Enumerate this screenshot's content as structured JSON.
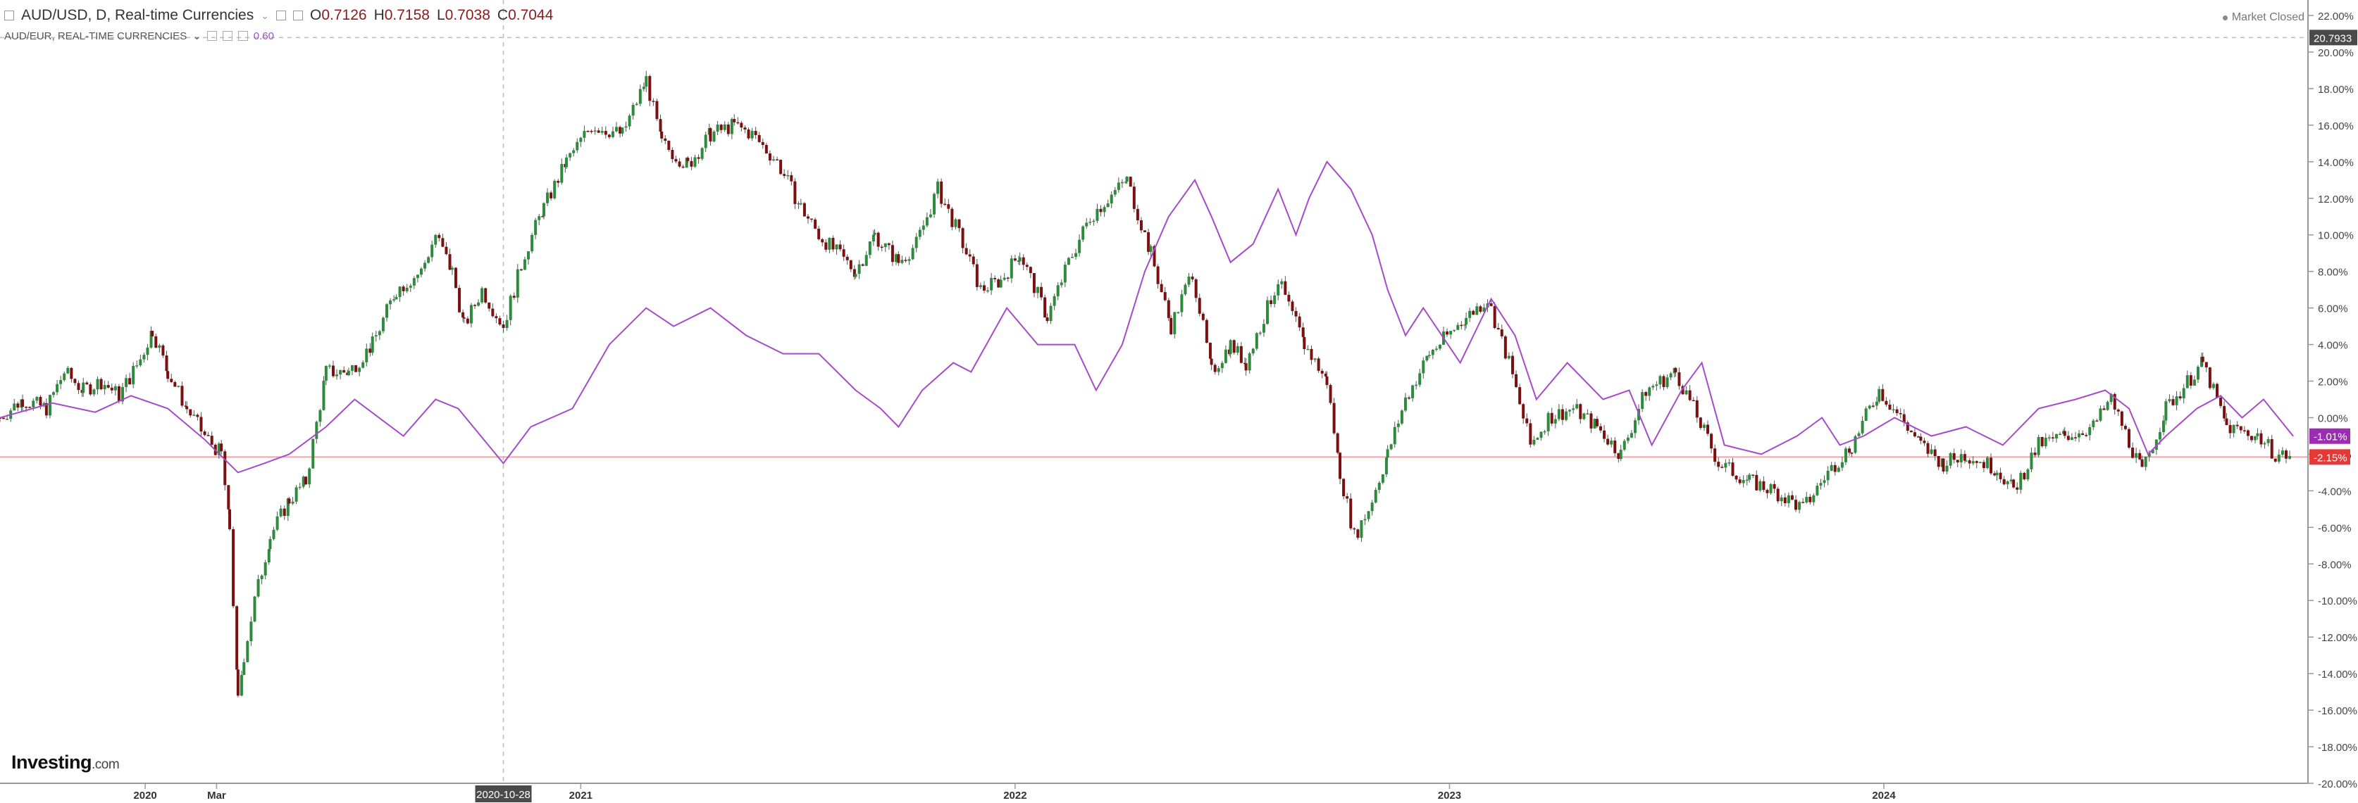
{
  "header": {
    "symbol_line": "AUD/USD, D, Real-time Currencies",
    "open_label": "O",
    "open": "0.7126",
    "high_label": "H",
    "high": "0.7158",
    "low_label": "L",
    "low": "0.7038",
    "close_label": "C",
    "close": "0.7044",
    "overlay_line": "AUD/EUR, REAL-TIME CURRENCIES",
    "overlay_value": "0.60"
  },
  "status": {
    "market": "Market Closed"
  },
  "branding": {
    "logo": "Investing",
    "logo_suffix": ".com"
  },
  "crosshair": {
    "date_label": "2020-10-28"
  },
  "chart_data": {
    "type": "line",
    "y_unit": "%",
    "y_range": [
      -20,
      22
    ],
    "y_ticks": [
      "22.00%",
      "20.00%",
      "18.00%",
      "16.00%",
      "14.00%",
      "12.00%",
      "10.00%",
      "8.00%",
      "6.00%",
      "4.00%",
      "2.00%",
      "0.00%",
      "-2.00%",
      "-4.00%",
      "-6.00%",
      "-8.00%",
      "-10.00%",
      "-12.00%",
      "-14.00%",
      "-16.00%",
      "-18.00%",
      "-20.00%"
    ],
    "x_ticks": [
      {
        "label": "2020",
        "date": "2020-01-01"
      },
      {
        "label": "Mar",
        "date": "2020-03-01"
      },
      {
        "label": "2021",
        "date": "2021-01-01"
      },
      {
        "label": "2022",
        "date": "2022-01-01"
      },
      {
        "label": "2023",
        "date": "2023-01-01"
      },
      {
        "label": "2024",
        "date": "2024-01-01"
      }
    ],
    "x_range": [
      "2019-09-01",
      "2024-12-20"
    ],
    "grid": false,
    "series": [
      {
        "name": "AUD/USD",
        "style": "candlestick",
        "up_color": "#2e8b3d",
        "down_color": "#7a1010",
        "points": [
          [
            "2019-09-01",
            0.0
          ],
          [
            "2019-09-20",
            1.0
          ],
          [
            "2019-10-10",
            0.5
          ],
          [
            "2019-10-25",
            2.5
          ],
          [
            "2019-11-10",
            1.5
          ],
          [
            "2019-11-25",
            2.0
          ],
          [
            "2019-12-10",
            1.2
          ],
          [
            "2019-12-28",
            3.2
          ],
          [
            "2020-01-07",
            4.8
          ],
          [
            "2020-01-20",
            2.5
          ],
          [
            "2020-02-05",
            0.5
          ],
          [
            "2020-02-20",
            -1.0
          ],
          [
            "2020-03-05",
            -2.0
          ],
          [
            "2020-03-12",
            -6.0
          ],
          [
            "2020-03-19",
            -15.5
          ],
          [
            "2020-03-24",
            -13.0
          ],
          [
            "2020-04-02",
            -10.0
          ],
          [
            "2020-04-15",
            -6.5
          ],
          [
            "2020-05-01",
            -4.5
          ],
          [
            "2020-05-15",
            -3.5
          ],
          [
            "2020-06-01",
            2.5
          ],
          [
            "2020-06-20",
            2.5
          ],
          [
            "2020-07-10",
            4.0
          ],
          [
            "2020-07-30",
            7.0
          ],
          [
            "2020-08-20",
            8.0
          ],
          [
            "2020-09-01",
            10.0
          ],
          [
            "2020-09-15",
            8.0
          ],
          [
            "2020-09-25",
            5.0
          ],
          [
            "2020-10-10",
            7.0
          ],
          [
            "2020-10-28",
            5.0
          ],
          [
            "2020-11-15",
            9.0
          ],
          [
            "2020-12-01",
            11.5
          ],
          [
            "2020-12-20",
            14.0
          ],
          [
            "2021-01-10",
            16.0
          ],
          [
            "2021-02-05",
            15.5
          ],
          [
            "2021-02-25",
            18.5
          ],
          [
            "2021-03-10",
            15.0
          ],
          [
            "2021-04-01",
            13.8
          ],
          [
            "2021-04-20",
            15.5
          ],
          [
            "2021-05-10",
            16.0
          ],
          [
            "2021-05-25",
            15.5
          ],
          [
            "2021-06-15",
            14.0
          ],
          [
            "2021-07-05",
            11.5
          ],
          [
            "2021-07-20",
            10.0
          ],
          [
            "2021-08-20",
            8.0
          ],
          [
            "2021-09-05",
            10.0
          ],
          [
            "2021-09-25",
            8.5
          ],
          [
            "2021-10-10",
            9.5
          ],
          [
            "2021-10-28",
            12.5
          ],
          [
            "2021-11-15",
            10.0
          ],
          [
            "2021-12-03",
            7.0
          ],
          [
            "2021-12-20",
            7.5
          ],
          [
            "2022-01-05",
            9.0
          ],
          [
            "2022-01-28",
            5.5
          ],
          [
            "2022-02-15",
            8.5
          ],
          [
            "2022-03-05",
            11.0
          ],
          [
            "2022-03-20",
            12.0
          ],
          [
            "2022-04-05",
            13.0
          ],
          [
            "2022-04-25",
            9.0
          ],
          [
            "2022-05-12",
            5.0
          ],
          [
            "2022-05-30",
            8.0
          ],
          [
            "2022-06-15",
            2.5
          ],
          [
            "2022-07-01",
            4.0
          ],
          [
            "2022-07-14",
            3.0
          ],
          [
            "2022-08-10",
            7.5
          ],
          [
            "2022-09-01",
            4.0
          ],
          [
            "2022-09-20",
            2.0
          ],
          [
            "2022-10-01",
            -3.0
          ],
          [
            "2022-10-13",
            -6.5
          ],
          [
            "2022-10-25",
            -5.0
          ],
          [
            "2022-11-10",
            -2.0
          ],
          [
            "2022-11-25",
            1.0
          ],
          [
            "2022-12-15",
            3.5
          ],
          [
            "2023-01-15",
            5.5
          ],
          [
            "2023-02-02",
            6.5
          ],
          [
            "2023-02-20",
            3.0
          ],
          [
            "2023-03-10",
            -1.5
          ],
          [
            "2023-03-25",
            0.0
          ],
          [
            "2023-04-15",
            0.5
          ],
          [
            "2023-05-05",
            -0.5
          ],
          [
            "2023-05-25",
            -2.0
          ],
          [
            "2023-06-15",
            1.5
          ],
          [
            "2023-07-10",
            2.5
          ],
          [
            "2023-07-25",
            0.5
          ],
          [
            "2023-08-15",
            -2.5
          ],
          [
            "2023-09-10",
            -3.5
          ],
          [
            "2023-10-01",
            -4.0
          ],
          [
            "2023-10-25",
            -5.0
          ],
          [
            "2023-11-15",
            -3.0
          ],
          [
            "2023-12-05",
            -1.5
          ],
          [
            "2023-12-28",
            1.5
          ],
          [
            "2024-01-15",
            0.0
          ],
          [
            "2024-02-01",
            -1.5
          ],
          [
            "2024-02-20",
            -2.5
          ],
          [
            "2024-03-10",
            -2.0
          ],
          [
            "2024-04-05",
            -2.8
          ],
          [
            "2024-04-19",
            -4.0
          ],
          [
            "2024-05-10",
            -1.5
          ],
          [
            "2024-06-01",
            -1.0
          ],
          [
            "2024-06-25",
            -0.5
          ],
          [
            "2024-07-10",
            1.0
          ],
          [
            "2024-08-05",
            -3.0
          ],
          [
            "2024-08-25",
            0.5
          ],
          [
            "2024-09-25",
            3.0
          ],
          [
            "2024-10-15",
            -0.5
          ],
          [
            "2024-11-10",
            -1.0
          ],
          [
            "2024-11-25",
            -2.0
          ],
          [
            "2024-12-10",
            -2.15
          ]
        ]
      },
      {
        "name": "AUD/EUR",
        "style": "line",
        "color": "#a64ac9",
        "points": [
          [
            "2019-09-01",
            0.0
          ],
          [
            "2019-10-15",
            0.8
          ],
          [
            "2019-11-20",
            0.3
          ],
          [
            "2019-12-20",
            1.2
          ],
          [
            "2020-01-20",
            0.5
          ],
          [
            "2020-02-20",
            -1.2
          ],
          [
            "2020-03-19",
            -3.0
          ],
          [
            "2020-04-10",
            -2.5
          ],
          [
            "2020-05-01",
            -2.0
          ],
          [
            "2020-06-01",
            -0.5
          ],
          [
            "2020-06-25",
            1.0
          ],
          [
            "2020-08-05",
            -1.0
          ],
          [
            "2020-09-01",
            1.0
          ],
          [
            "2020-09-20",
            0.5
          ],
          [
            "2020-10-28",
            -2.5
          ],
          [
            "2020-11-20",
            -0.5
          ],
          [
            "2020-12-25",
            0.5
          ],
          [
            "2021-01-25",
            4.0
          ],
          [
            "2021-02-25",
            6.0
          ],
          [
            "2021-03-20",
            5.0
          ],
          [
            "2021-04-20",
            6.0
          ],
          [
            "2021-05-20",
            4.5
          ],
          [
            "2021-06-20",
            3.5
          ],
          [
            "2021-07-20",
            3.5
          ],
          [
            "2021-08-20",
            1.5
          ],
          [
            "2021-09-10",
            0.5
          ],
          [
            "2021-09-25",
            -0.5
          ],
          [
            "2021-10-15",
            1.5
          ],
          [
            "2021-11-10",
            3.0
          ],
          [
            "2021-11-25",
            2.5
          ],
          [
            "2021-12-25",
            6.0
          ],
          [
            "2022-01-20",
            4.0
          ],
          [
            "2022-02-20",
            4.0
          ],
          [
            "2022-03-10",
            1.5
          ],
          [
            "2022-04-01",
            4.0
          ],
          [
            "2022-04-20",
            8.0
          ],
          [
            "2022-05-10",
            11.0
          ],
          [
            "2022-06-01",
            13.0
          ],
          [
            "2022-06-15",
            11.0
          ],
          [
            "2022-07-01",
            8.5
          ],
          [
            "2022-07-20",
            9.5
          ],
          [
            "2022-08-10",
            12.5
          ],
          [
            "2022-08-25",
            10.0
          ],
          [
            "2022-09-05",
            12.0
          ],
          [
            "2022-09-20",
            14.0
          ],
          [
            "2022-10-10",
            12.5
          ],
          [
            "2022-10-28",
            10.0
          ],
          [
            "2022-11-10",
            7.0
          ],
          [
            "2022-11-25",
            4.5
          ],
          [
            "2022-12-10",
            6.0
          ],
          [
            "2023-01-10",
            3.0
          ],
          [
            "2023-02-05",
            6.5
          ],
          [
            "2023-02-25",
            4.5
          ],
          [
            "2023-03-15",
            1.0
          ],
          [
            "2023-04-10",
            3.0
          ],
          [
            "2023-05-10",
            1.0
          ],
          [
            "2023-06-01",
            1.5
          ],
          [
            "2023-06-20",
            -1.5
          ],
          [
            "2023-07-15",
            1.5
          ],
          [
            "2023-08-01",
            3.0
          ],
          [
            "2023-08-20",
            -1.5
          ],
          [
            "2023-09-20",
            -2.0
          ],
          [
            "2023-10-20",
            -1.0
          ],
          [
            "2023-11-10",
            0.0
          ],
          [
            "2023-11-25",
            -1.5
          ],
          [
            "2023-12-15",
            -1.0
          ],
          [
            "2024-01-10",
            0.0
          ],
          [
            "2024-02-10",
            -1.0
          ],
          [
            "2024-03-10",
            -0.5
          ],
          [
            "2024-04-10",
            -1.5
          ],
          [
            "2024-05-10",
            0.5
          ],
          [
            "2024-06-10",
            1.0
          ],
          [
            "2024-07-05",
            1.5
          ],
          [
            "2024-07-25",
            0.5
          ],
          [
            "2024-08-10",
            -2.0
          ],
          [
            "2024-08-25",
            -1.0
          ],
          [
            "2024-09-20",
            0.5
          ],
          [
            "2024-10-10",
            1.2
          ],
          [
            "2024-10-28",
            0.0
          ],
          [
            "2024-11-15",
            1.0
          ],
          [
            "2024-12-10",
            -1.01
          ]
        ]
      }
    ],
    "last_values": [
      {
        "series": "AUD/EUR",
        "label": "-1.01%",
        "value": -1.01,
        "color": "#9c2db3"
      },
      {
        "series": "AUD/USD",
        "label": "-2.15%",
        "value": -2.15,
        "color": "#e53935"
      }
    ],
    "crosshair_value": {
      "label": "20.7933",
      "value": 20.7933
    }
  }
}
